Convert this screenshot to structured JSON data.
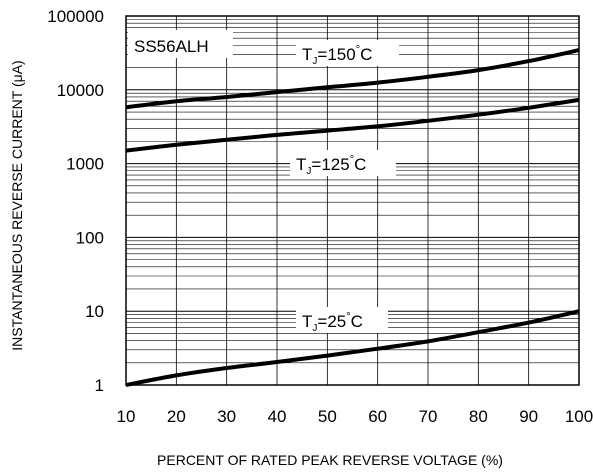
{
  "chart_data": {
    "type": "line",
    "title": "",
    "device_label": "SS56ALH",
    "xlabel": "PERCENT OF RATED PEAK REVERSE VOLTAGE (%)",
    "ylabel": "INSTANTANEOUS REVERSE CURRENT (μA)",
    "xlim": [
      10,
      100
    ],
    "ylim": [
      1,
      100000
    ],
    "y_scale": "log",
    "grid": true,
    "x_ticks": [
      "10",
      "20",
      "30",
      "40",
      "50",
      "60",
      "70",
      "80",
      "90",
      "100"
    ],
    "y_ticks": [
      "1",
      "10",
      "100",
      "1000",
      "10000",
      "100000"
    ],
    "series": [
      {
        "name": "TJ=150°C",
        "label_main": "T",
        "label_sub": "J",
        "label_temp": "=150",
        "label_unit": "C",
        "x": [
          10,
          20,
          30,
          40,
          50,
          60,
          70,
          80,
          90,
          100
        ],
        "y": [
          5800,
          7000,
          8000,
          9300,
          10800,
          12500,
          15000,
          18500,
          24500,
          34500
        ]
      },
      {
        "name": "TJ=125°C",
        "label_main": "T",
        "label_sub": "J",
        "label_temp": "=125",
        "label_unit": "C",
        "x": [
          10,
          20,
          30,
          40,
          50,
          60,
          70,
          80,
          90,
          100
        ],
        "y": [
          1500,
          1800,
          2100,
          2450,
          2800,
          3200,
          3800,
          4600,
          5700,
          7300
        ]
      },
      {
        "name": "TJ=25°C",
        "label_main": "T",
        "label_sub": "J",
        "label_temp": "=25",
        "label_unit": "C",
        "x": [
          10,
          20,
          30,
          40,
          50,
          60,
          70,
          80,
          90,
          100
        ],
        "y": [
          1,
          1.35,
          1.7,
          2.05,
          2.5,
          3.1,
          3.9,
          5.2,
          7.0,
          10
        ]
      }
    ]
  }
}
